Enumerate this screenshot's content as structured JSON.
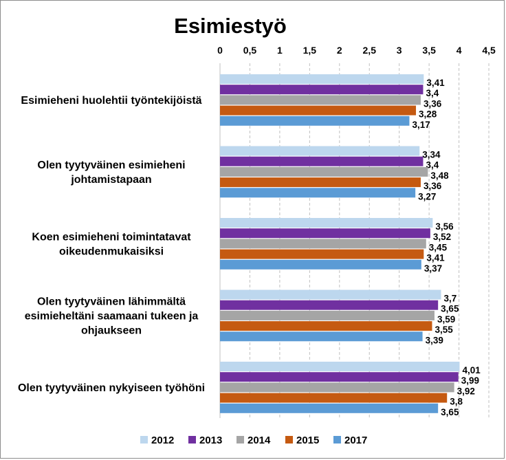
{
  "chart_data": {
    "type": "bar",
    "orientation": "horizontal",
    "title": "Esimiestyö",
    "xlim": [
      0,
      4.5
    ],
    "x_ticks": [
      "0",
      "0,5",
      "1",
      "1,5",
      "2",
      "2,5",
      "3",
      "3,5",
      "4",
      "4,5"
    ],
    "x_axis_position": "top",
    "grid": "vertical dashed",
    "legend_position": "bottom",
    "categories": [
      [
        "Esimieheni huolehtii työntekijöistä"
      ],
      [
        "Olen tyytyväinen esimieheni",
        "johtamistapaan"
      ],
      [
        "Koen esimieheni toimintatavat",
        "oikeudenmukaisiksi"
      ],
      [
        "Olen tyytyväinen lähimmältä",
        "esimieheltäni saamaani tukeen ja",
        "ohjaukseen"
      ],
      [
        "Olen tyytyväinen nykyiseen työhöni"
      ]
    ],
    "series": [
      {
        "name": "2012",
        "color": "#bdd7ee",
        "values": [
          3.41,
          3.34,
          3.56,
          3.7,
          4.01
        ],
        "labels": [
          "3,41",
          "3,34",
          "3,56",
          "3,7",
          "4,01"
        ]
      },
      {
        "name": "2013",
        "color": "#7030a0",
        "values": [
          3.4,
          3.4,
          3.52,
          3.65,
          3.99
        ],
        "labels": [
          "3,4",
          "3,4",
          "3,52",
          "3,65",
          "3,99"
        ]
      },
      {
        "name": "2014",
        "color": "#a5a5a5",
        "values": [
          3.36,
          3.48,
          3.45,
          3.59,
          3.92
        ],
        "labels": [
          "3,36",
          "3,48",
          "3,45",
          "3,59",
          "3,92"
        ]
      },
      {
        "name": "2015",
        "color": "#c55a11",
        "values": [
          3.28,
          3.36,
          3.41,
          3.55,
          3.8
        ],
        "labels": [
          "3,28",
          "3,36",
          "3,41",
          "3,55",
          "3,8"
        ]
      },
      {
        "name": "2017",
        "color": "#5b9bd5",
        "values": [
          3.17,
          3.27,
          3.37,
          3.39,
          3.65
        ],
        "labels": [
          "3,17",
          "3,27",
          "3,37",
          "3,39",
          "3,65"
        ]
      }
    ]
  }
}
